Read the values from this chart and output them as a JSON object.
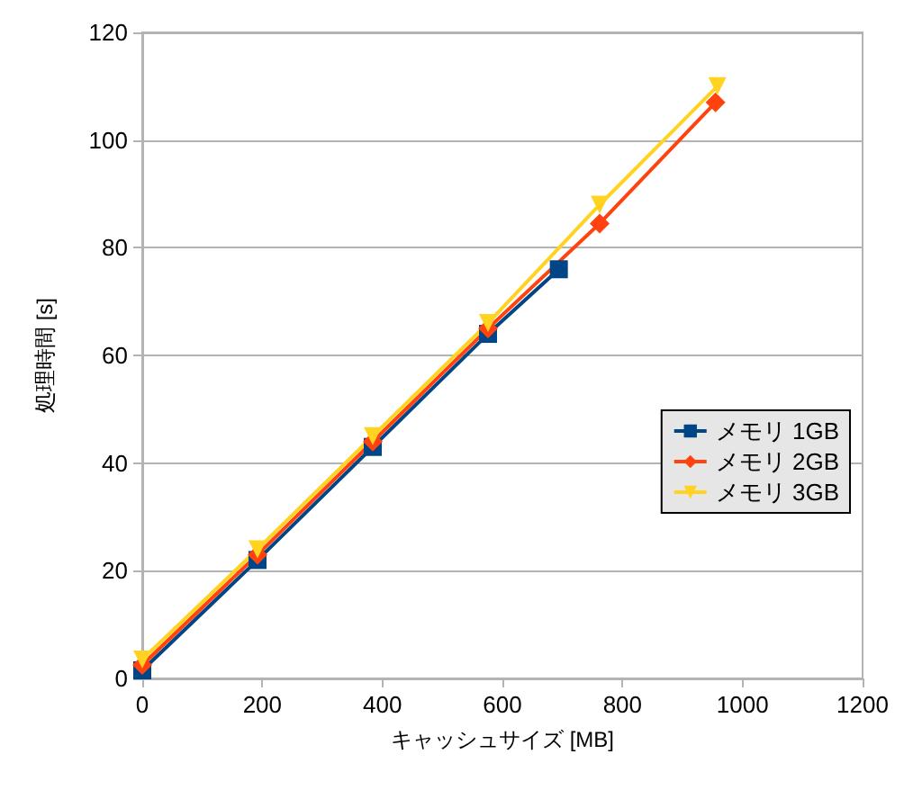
{
  "chart_data": {
    "type": "line",
    "xlabel": "キャッシュサイズ [MB]",
    "ylabel": "処理時間 [s]",
    "xlim": [
      0,
      1200
    ],
    "xticks": [
      0,
      200,
      400,
      600,
      800,
      1000,
      1200
    ],
    "ylim": [
      0,
      120
    ],
    "yticks": [
      0,
      20,
      40,
      60,
      80,
      100,
      120
    ],
    "grid": "y",
    "legend": "right",
    "line_style": "solid",
    "series": [
      {
        "name": "メモリ 1GB",
        "color": "#004586",
        "marker": "square",
        "x": [
          0,
          192,
          384,
          576,
          694
        ],
        "values": [
          1.5,
          22,
          43,
          64,
          76
        ]
      },
      {
        "name": "メモリ 2GB",
        "color": "#ff420e",
        "marker": "diamond",
        "x": [
          0,
          192,
          384,
          576,
          762,
          955
        ],
        "values": [
          2.5,
          23,
          44,
          65,
          84.5,
          107
        ]
      },
      {
        "name": "メモリ 3GB",
        "color": "#ffd320",
        "marker": "triangle",
        "x": [
          0,
          192,
          384,
          576,
          762,
          958
        ],
        "values": [
          3.5,
          24,
          45,
          66,
          88,
          110
        ]
      }
    ]
  }
}
